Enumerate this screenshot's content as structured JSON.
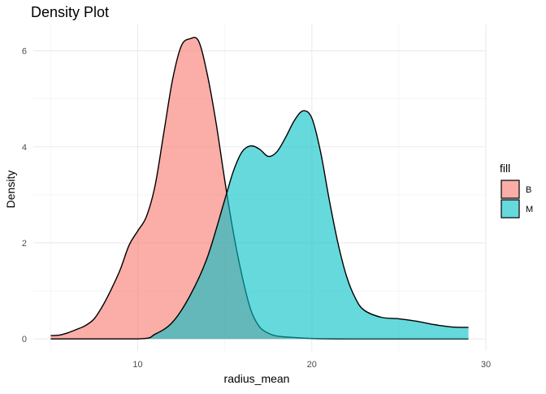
{
  "chart_data": {
    "type": "area",
    "title": "Density Plot",
    "xlabel": "radius_mean",
    "ylabel": "Density",
    "xlim": [
      5,
      30
    ],
    "ylim": [
      0,
      6.3
    ],
    "x_ticks": [
      10,
      20,
      30
    ],
    "y_ticks": [
      0,
      2,
      4,
      6
    ],
    "grid": true,
    "legend": {
      "title": "fill",
      "position": "right"
    },
    "series": [
      {
        "name": "B",
        "color": "#F8766D",
        "opacity": 0.6,
        "points": [
          [
            5.0,
            0.07
          ],
          [
            5.5,
            0.08
          ],
          [
            6.0,
            0.13
          ],
          [
            6.5,
            0.2
          ],
          [
            7.0,
            0.28
          ],
          [
            7.5,
            0.42
          ],
          [
            8.0,
            0.7
          ],
          [
            8.5,
            1.05
          ],
          [
            9.0,
            1.45
          ],
          [
            9.5,
            1.95
          ],
          [
            10.0,
            2.25
          ],
          [
            10.5,
            2.55
          ],
          [
            11.0,
            3.2
          ],
          [
            11.5,
            4.3
          ],
          [
            12.0,
            5.4
          ],
          [
            12.5,
            6.1
          ],
          [
            13.0,
            6.25
          ],
          [
            13.5,
            6.2
          ],
          [
            14.0,
            5.5
          ],
          [
            14.5,
            4.5
          ],
          [
            15.0,
            3.3
          ],
          [
            15.5,
            2.2
          ],
          [
            16.0,
            1.3
          ],
          [
            16.5,
            0.6
          ],
          [
            17.0,
            0.25
          ],
          [
            17.5,
            0.12
          ],
          [
            18.0,
            0.06
          ],
          [
            19.0,
            0.03
          ],
          [
            20.0,
            0.01
          ],
          [
            22.0,
            0.0
          ],
          [
            25.0,
            0.0
          ],
          [
            29.0,
            0.0
          ]
        ]
      },
      {
        "name": "M",
        "color": "#00BFC4",
        "opacity": 0.6,
        "points": [
          [
            5.0,
            0.0
          ],
          [
            10.0,
            0.0
          ],
          [
            11.0,
            0.1
          ],
          [
            12.0,
            0.35
          ],
          [
            13.0,
            0.9
          ],
          [
            14.0,
            1.7
          ],
          [
            15.0,
            2.9
          ],
          [
            15.5,
            3.5
          ],
          [
            16.0,
            3.9
          ],
          [
            16.5,
            4.02
          ],
          [
            17.0,
            3.95
          ],
          [
            17.5,
            3.8
          ],
          [
            18.0,
            3.9
          ],
          [
            18.5,
            4.2
          ],
          [
            19.0,
            4.55
          ],
          [
            19.5,
            4.75
          ],
          [
            20.0,
            4.6
          ],
          [
            20.5,
            3.9
          ],
          [
            21.0,
            2.9
          ],
          [
            21.5,
            2.0
          ],
          [
            22.0,
            1.3
          ],
          [
            22.5,
            0.85
          ],
          [
            23.0,
            0.6
          ],
          [
            24.0,
            0.45
          ],
          [
            25.0,
            0.42
          ],
          [
            26.0,
            0.37
          ],
          [
            27.0,
            0.3
          ],
          [
            28.0,
            0.25
          ],
          [
            29.0,
            0.24
          ]
        ]
      }
    ]
  }
}
